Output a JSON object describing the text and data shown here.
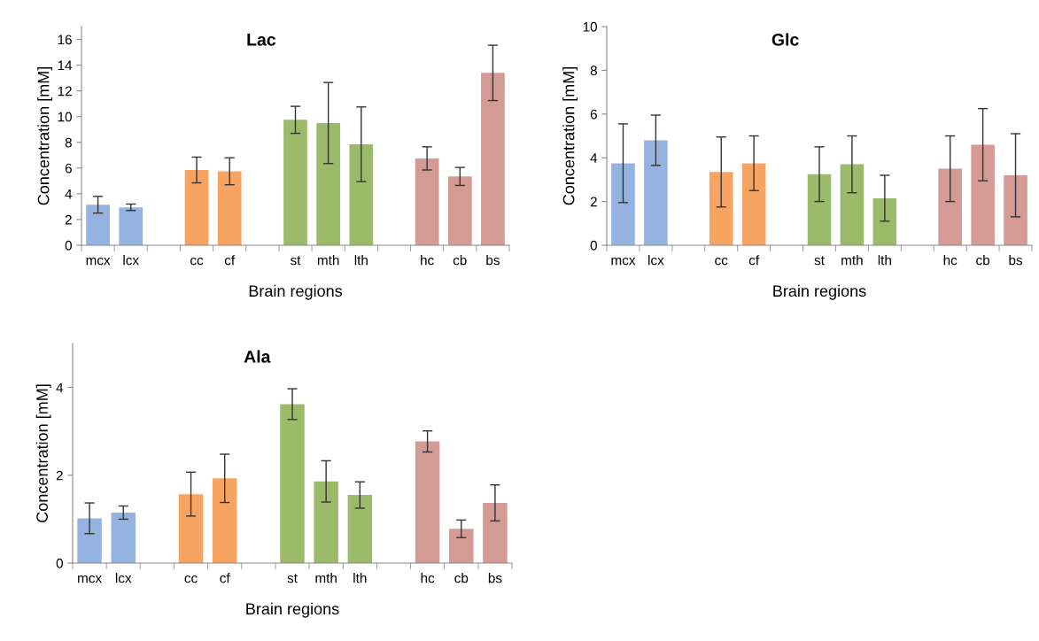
{
  "chart_data": [
    {
      "type": "bar",
      "title": "Lac",
      "xlabel": "Brain regions",
      "ylabel": "Concentration [mM]",
      "categories": [
        "mcx",
        "lcx",
        null,
        "cc",
        "cf",
        null,
        "st",
        "mth",
        "lth",
        null,
        "hc",
        "cb",
        "bs"
      ],
      "values": [
        3.15,
        2.95,
        null,
        5.85,
        5.75,
        null,
        9.75,
        9.5,
        7.85,
        null,
        6.75,
        5.35,
        13.4
      ],
      "errors": [
        0.65,
        0.25,
        null,
        1.0,
        1.05,
        null,
        1.05,
        3.15,
        2.9,
        null,
        0.9,
        0.7,
        2.15
      ],
      "colors": [
        "#95b3e0",
        "#95b3e0",
        null,
        "#f7a462",
        "#f7a462",
        null,
        "#9bbb6a",
        "#9bbb6a",
        "#9bbb6a",
        null,
        "#d49a94",
        "#d49a94",
        "#d49a94"
      ],
      "ylim": [
        0,
        17
      ],
      "yticks": [
        0,
        2,
        4,
        6,
        8,
        10,
        12,
        14,
        16
      ],
      "grid": false
    },
    {
      "type": "bar",
      "title": "Glc",
      "xlabel": "Brain regions",
      "ylabel": "Concentration [mM]",
      "categories": [
        "mcx",
        "lcx",
        null,
        "cc",
        "cf",
        null,
        "st",
        "mth",
        "lth",
        null,
        "hc",
        "cb",
        "bs"
      ],
      "values": [
        3.75,
        4.8,
        null,
        3.35,
        3.75,
        null,
        3.25,
        3.7,
        2.15,
        null,
        3.5,
        4.6,
        3.2
      ],
      "errors": [
        1.8,
        1.15,
        null,
        1.6,
        1.25,
        null,
        1.25,
        1.3,
        1.05,
        null,
        1.5,
        1.65,
        1.9
      ],
      "colors": [
        "#95b3e0",
        "#95b3e0",
        null,
        "#f7a462",
        "#f7a462",
        null,
        "#9bbb6a",
        "#9bbb6a",
        "#9bbb6a",
        null,
        "#d49a94",
        "#d49a94",
        "#d49a94"
      ],
      "ylim": [
        0,
        10
      ],
      "yticks": [
        0,
        2,
        4,
        6,
        8,
        10
      ],
      "grid": false
    },
    {
      "type": "bar",
      "title": "Ala",
      "xlabel": "Brain regions",
      "ylabel": "Concentration [mM]",
      "categories": [
        "mcx",
        "lcx",
        null,
        "cc",
        "cf",
        null,
        "st",
        "mth",
        "lth",
        null,
        "hc",
        "cb",
        "bs"
      ],
      "values": [
        1.02,
        1.15,
        null,
        1.57,
        1.93,
        null,
        3.62,
        1.86,
        1.55,
        null,
        2.77,
        0.78,
        1.37
      ],
      "errors": [
        0.35,
        0.15,
        null,
        0.5,
        0.55,
        null,
        0.35,
        0.47,
        0.3,
        null,
        0.24,
        0.2,
        0.41
      ],
      "colors": [
        "#95b3e0",
        "#95b3e0",
        null,
        "#f7a462",
        "#f7a462",
        null,
        "#9bbb6a",
        "#9bbb6a",
        "#9bbb6a",
        null,
        "#d49a94",
        "#d49a94",
        "#d49a94"
      ],
      "ylim": [
        0,
        5
      ],
      "yticks": [
        0,
        2,
        4
      ],
      "grid": false
    }
  ]
}
